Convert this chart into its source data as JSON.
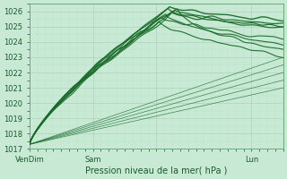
{
  "title": "Pression niveau de la mer( hPa )",
  "ylim": [
    1017,
    1026.5
  ],
  "yticks": [
    1017,
    1018,
    1019,
    1020,
    1021,
    1022,
    1023,
    1024,
    1025,
    1026
  ],
  "bg_color": "#c8ead5",
  "grid_major_color": "#a8cdb8",
  "grid_minor_color": "#b8ddc8",
  "line_color": "#1a6b2a",
  "n_hours": 192,
  "xtick_positions": [
    0,
    48,
    96,
    168
  ],
  "xtick_labels": [
    "VenDim",
    "Sam",
    "",
    "Lun"
  ]
}
